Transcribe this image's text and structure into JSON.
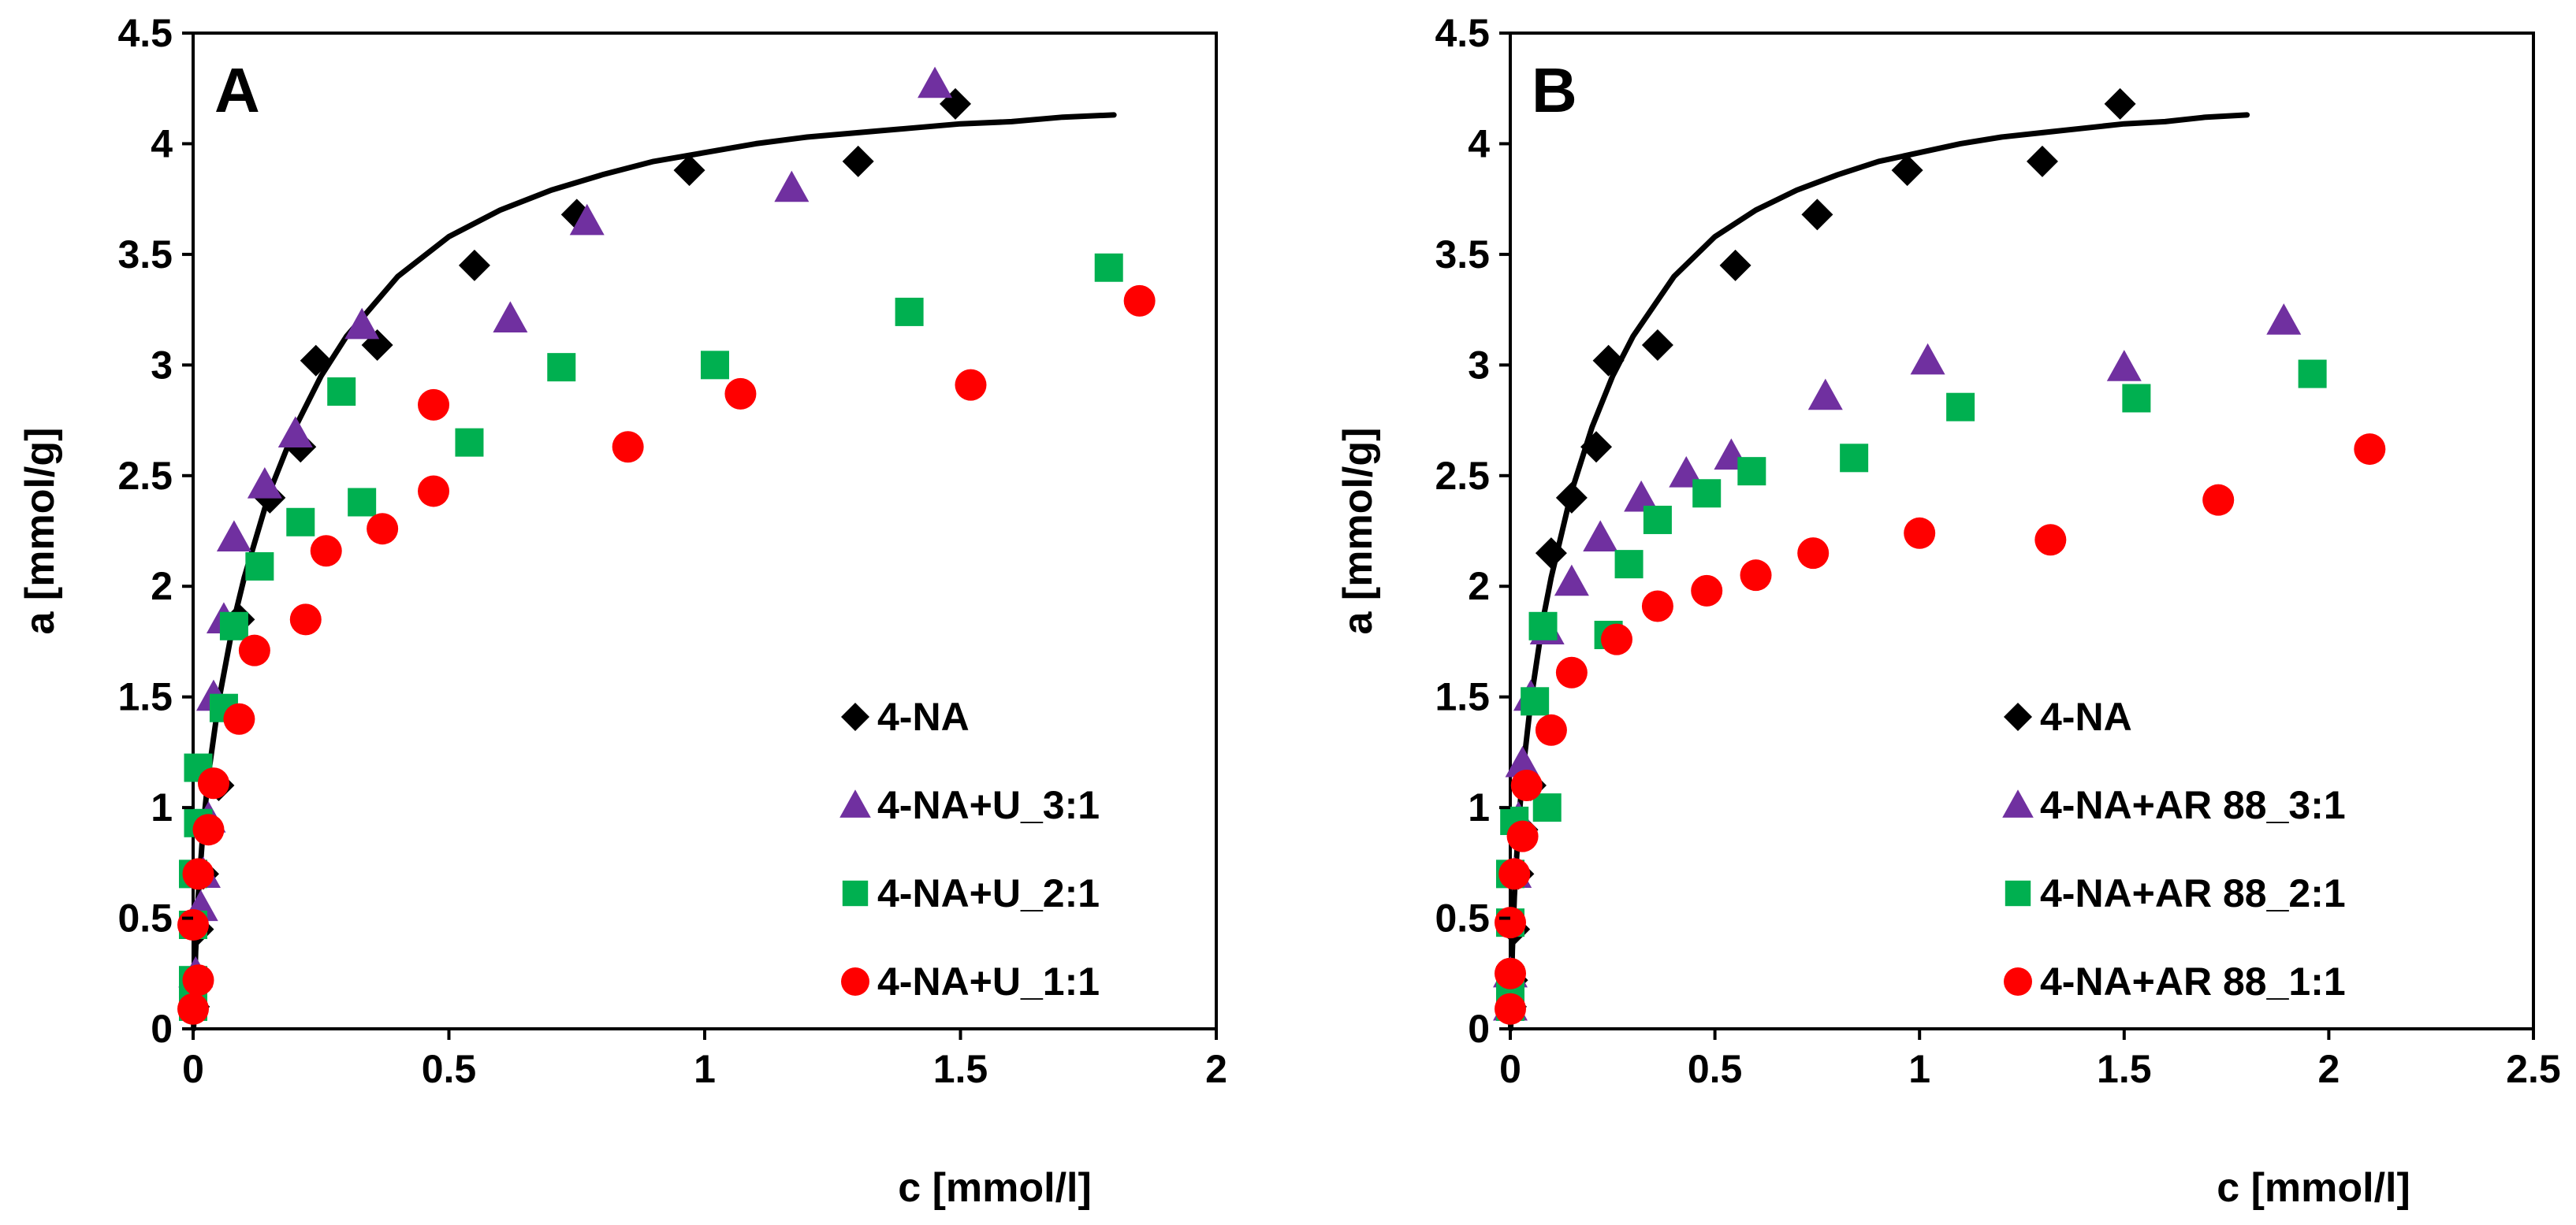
{
  "chart_data": [
    {
      "type": "scatter",
      "panel_label": "A",
      "xlabel": "c [mmol/l]",
      "ylabel": "a [mmol/g]",
      "xlim": [
        0,
        2
      ],
      "ylim": [
        0,
        4.5
      ],
      "xticks": [
        "0",
        "0.5",
        "1",
        "1.5",
        "2"
      ],
      "yticks": [
        "0",
        "0.5",
        "1",
        "1.5",
        "2",
        "2.5",
        "3",
        "3.5",
        "4",
        "4.5"
      ],
      "legend_position": "bottom-right",
      "fit_line": {
        "name": "4-NA fit",
        "color": "#000000",
        "x": [
          0.001,
          0.005,
          0.01,
          0.02,
          0.03,
          0.05,
          0.08,
          0.1,
          0.15,
          0.2,
          0.25,
          0.3,
          0.4,
          0.5,
          0.6,
          0.7,
          0.8,
          0.9,
          1.0,
          1.1,
          1.2,
          1.3,
          1.4,
          1.5,
          1.6,
          1.7,
          1.8
        ],
        "y": [
          0.0,
          0.35,
          0.6,
          0.92,
          1.15,
          1.48,
          1.85,
          2.04,
          2.43,
          2.72,
          2.95,
          3.13,
          3.4,
          3.58,
          3.7,
          3.79,
          3.86,
          3.92,
          3.96,
          4.0,
          4.03,
          4.05,
          4.07,
          4.09,
          4.1,
          4.12,
          4.13
        ]
      },
      "series": [
        {
          "name": "4-NA",
          "marker": "diamond",
          "color": "#000000",
          "x": [
            0.002,
            0.005,
            0.01,
            0.02,
            0.03,
            0.05,
            0.09,
            0.15,
            0.21,
            0.24,
            0.36,
            0.55,
            0.75,
            0.97,
            1.3,
            1.49
          ],
          "y": [
            0.1,
            0.22,
            0.45,
            0.7,
            0.9,
            1.1,
            1.85,
            2.4,
            2.63,
            3.02,
            3.09,
            3.45,
            3.68,
            3.88,
            3.92,
            4.18
          ]
        },
        {
          "name": "4-NA+U_3:1",
          "marker": "triangle",
          "color": "#7030A0",
          "x": [
            0.005,
            0.015,
            0.02,
            0.03,
            0.04,
            0.06,
            0.08,
            0.14,
            0.2,
            0.33,
            0.62,
            0.77,
            1.17,
            1.45
          ],
          "y": [
            0.25,
            0.55,
            0.7,
            0.95,
            1.5,
            1.85,
            2.22,
            2.46,
            2.69,
            3.18,
            3.21,
            3.65,
            3.8,
            4.27
          ]
        },
        {
          "name": "4-NA+U_2:1",
          "marker": "square",
          "color": "#00B050",
          "x": [
            0.0,
            0.0,
            0.0,
            0.0,
            0.01,
            0.01,
            0.06,
            0.08,
            0.13,
            0.21,
            0.29,
            0.33,
            0.54,
            0.72,
            1.02,
            1.4,
            1.79
          ],
          "y": [
            0.1,
            0.22,
            0.47,
            0.7,
            0.93,
            1.18,
            1.45,
            1.82,
            2.09,
            2.29,
            2.88,
            2.38,
            2.65,
            2.99,
            3.0,
            3.24,
            3.44
          ]
        },
        {
          "name": "4-NA+U_1:1",
          "marker": "circle",
          "color": "#FF0000",
          "x": [
            0.0,
            0.01,
            0.0,
            0.01,
            0.03,
            0.04,
            0.09,
            0.12,
            0.22,
            0.26,
            0.37,
            0.47,
            0.47,
            0.85,
            1.07,
            1.52,
            1.85
          ],
          "y": [
            0.09,
            0.22,
            0.47,
            0.7,
            0.9,
            1.11,
            1.4,
            1.71,
            1.85,
            2.16,
            2.26,
            2.43,
            2.82,
            2.63,
            2.87,
            2.91,
            3.29
          ]
        }
      ]
    },
    {
      "type": "scatter",
      "panel_label": "B",
      "xlabel": "c [mmol/l]",
      "ylabel": "a [mmol/g]",
      "xlim": [
        0,
        2.5
      ],
      "ylim": [
        0,
        4.5
      ],
      "xticks": [
        "0",
        "0.5",
        "1",
        "1.5",
        "2",
        "2.5"
      ],
      "yticks": [
        "0",
        "0.5",
        "1",
        "1.5",
        "2",
        "2.5",
        "3",
        "3.5",
        "4",
        "4.5"
      ],
      "legend_position": "bottom-right",
      "fit_line": {
        "name": "4-NA fit",
        "color": "#000000",
        "x": [
          0.001,
          0.005,
          0.01,
          0.02,
          0.03,
          0.05,
          0.08,
          0.1,
          0.15,
          0.2,
          0.25,
          0.3,
          0.4,
          0.5,
          0.6,
          0.7,
          0.8,
          0.9,
          1.0,
          1.1,
          1.2,
          1.3,
          1.4,
          1.5,
          1.6,
          1.7,
          1.8
        ],
        "y": [
          0.0,
          0.35,
          0.6,
          0.92,
          1.15,
          1.48,
          1.85,
          2.04,
          2.43,
          2.72,
          2.95,
          3.13,
          3.4,
          3.58,
          3.7,
          3.79,
          3.86,
          3.92,
          3.96,
          4.0,
          4.03,
          4.05,
          4.07,
          4.09,
          4.1,
          4.12,
          4.13
        ]
      },
      "series": [
        {
          "name": "4-NA",
          "marker": "diamond",
          "color": "#000000",
          "x": [
            0.002,
            0.005,
            0.01,
            0.02,
            0.03,
            0.05,
            0.1,
            0.15,
            0.21,
            0.24,
            0.36,
            0.55,
            0.75,
            0.97,
            1.3,
            1.49
          ],
          "y": [
            0.1,
            0.22,
            0.45,
            0.7,
            0.9,
            1.1,
            2.15,
            2.4,
            2.63,
            3.02,
            3.09,
            3.45,
            3.68,
            3.88,
            3.92,
            4.18
          ]
        },
        {
          "name": "4-NA+AR 88_3:1",
          "marker": "triangle",
          "color": "#7030A0",
          "x": [
            0.0,
            0.0,
            0.01,
            0.02,
            0.03,
            0.05,
            0.09,
            0.15,
            0.22,
            0.32,
            0.43,
            0.54,
            0.77,
            1.02,
            1.5,
            1.89
          ],
          "y": [
            0.1,
            0.25,
            0.7,
            0.95,
            1.2,
            1.5,
            1.8,
            2.02,
            2.22,
            2.4,
            2.51,
            2.59,
            2.86,
            3.02,
            2.99,
            3.2
          ]
        },
        {
          "name": "4-NA+AR 88_2:1",
          "marker": "square",
          "color": "#00B050",
          "x": [
            0.0,
            0.0,
            0.0,
            0.0,
            0.01,
            0.06,
            0.08,
            0.09,
            0.24,
            0.29,
            0.36,
            0.48,
            0.59,
            0.84,
            1.1,
            1.53,
            1.96
          ],
          "y": [
            0.1,
            0.22,
            0.48,
            0.7,
            0.94,
            1.48,
            1.82,
            1.0,
            1.78,
            2.1,
            2.3,
            2.42,
            2.52,
            2.58,
            2.81,
            2.85,
            2.96
          ]
        },
        {
          "name": "4-NA+AR 88_1:1",
          "marker": "circle",
          "color": "#FF0000",
          "x": [
            0.0,
            0.0,
            0.0,
            0.01,
            0.03,
            0.04,
            0.1,
            0.15,
            0.26,
            0.36,
            0.48,
            0.6,
            0.74,
            1.0,
            1.32,
            1.73,
            2.1
          ],
          "y": [
            0.09,
            0.25,
            0.48,
            0.7,
            0.87,
            1.1,
            1.35,
            1.61,
            1.76,
            1.91,
            1.98,
            2.05,
            2.15,
            2.24,
            2.21,
            2.39,
            2.62
          ]
        }
      ]
    }
  ]
}
